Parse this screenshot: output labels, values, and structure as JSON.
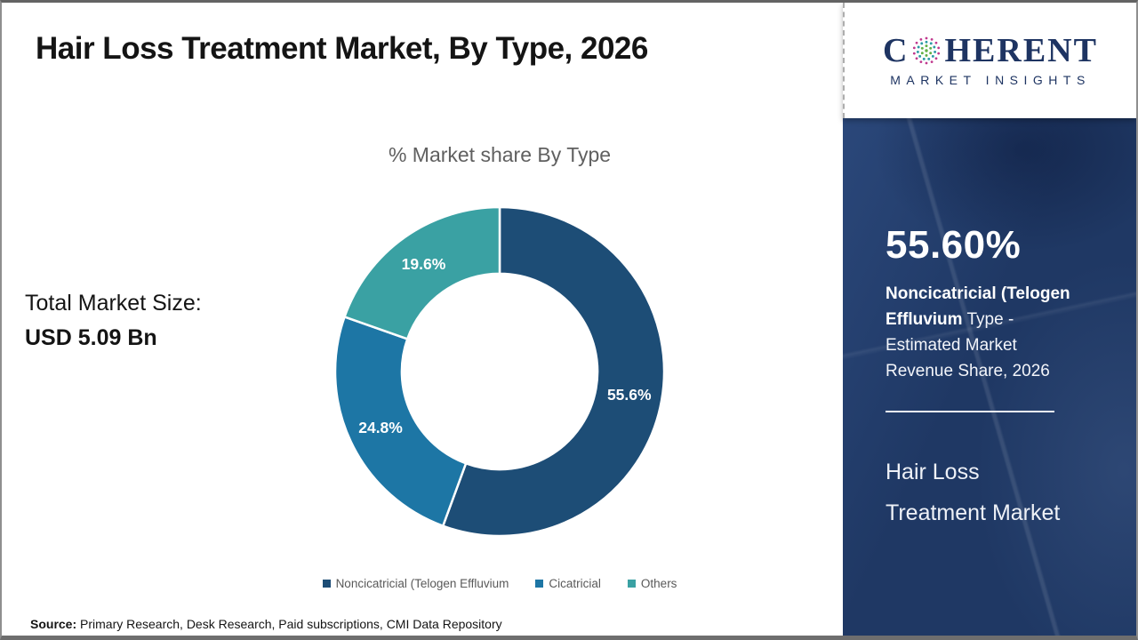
{
  "page": {
    "title": "Hair Loss Treatment Market, By Type, 2026"
  },
  "logo": {
    "brand_c": "C",
    "brand_rest": "HERENT",
    "subtitle": "MARKET INSIGHTS",
    "colors": {
      "navy": "#1e3462",
      "magenta": "#c0388e",
      "teal": "#2d9aa5",
      "green": "#62b146"
    }
  },
  "left_panel": {
    "total_label": "Total Market Size:",
    "total_value": "USD 5.09 Bn"
  },
  "chart_data": {
    "type": "pie",
    "title": "% Market share By Type",
    "categories": [
      "Noncicatricial (Telogen Effluvium",
      "Cicatricial",
      "Others"
    ],
    "values": [
      55.6,
      24.8,
      19.6
    ],
    "slice_labels": [
      "55.6%",
      "24.8%",
      "19.6%"
    ],
    "colors": [
      "#1d4d76",
      "#1d76a5",
      "#3aa1a3"
    ],
    "donut_hole_ratio": 0.595,
    "start_angle_deg": 0,
    "direction": "clockwise",
    "legend_position": "bottom"
  },
  "sidebar": {
    "stat_value": "55.60%",
    "stat_desc_bold": "Noncicatricial (Telogen Effluvium",
    "stat_desc_rest": " Type - Estimated Market Revenue Share, 2026",
    "product_line1": "Hair Loss",
    "product_line2": "Treatment Market",
    "background_color": "#1f3864"
  },
  "footer": {
    "source_label": "Source:",
    "source_text": " Primary Research, Desk Research, Paid subscriptions, CMI Data Repository"
  }
}
